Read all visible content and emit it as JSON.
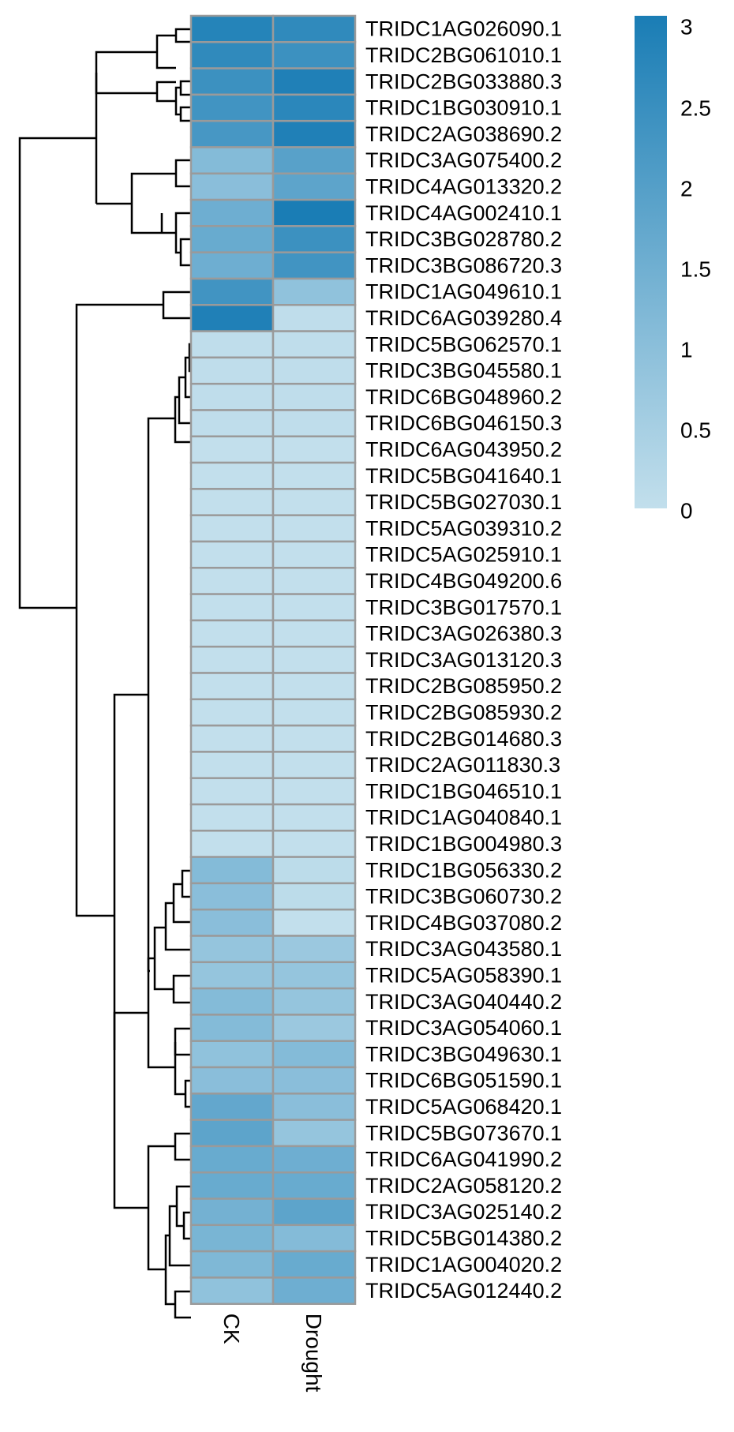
{
  "chart_data": {
    "type": "heatmap",
    "title": "",
    "columns": [
      "CK",
      "Drought"
    ],
    "rows": [
      "TRIDC1AG026090.1",
      "TRIDC2BG061010.1",
      "TRIDC2BG033880.3",
      "TRIDC1BG030910.1",
      "TRIDC2AG038690.2",
      "TRIDC3AG075400.2",
      "TRIDC4AG013320.2",
      "TRIDC4AG002410.1",
      "TRIDC3BG028780.2",
      "TRIDC3BG086720.3",
      "TRIDC1AG049610.1",
      "TRIDC6AG039280.4",
      "TRIDC5BG062570.1",
      "TRIDC3BG045580.1",
      "TRIDC6BG048960.2",
      "TRIDC6BG046150.3",
      "TRIDC6AG043950.2",
      "TRIDC5BG041640.1",
      "TRIDC5BG027030.1",
      "TRIDC5AG039310.2",
      "TRIDC5AG025910.1",
      "TRIDC4BG049200.6",
      "TRIDC3BG017570.1",
      "TRIDC3AG026380.3",
      "TRIDC3AG013120.3",
      "TRIDC2BG085950.2",
      "TRIDC2BG085930.2",
      "TRIDC2BG014680.3",
      "TRIDC2AG011830.3",
      "TRIDC1BG046510.1",
      "TRIDC1AG040840.1",
      "TRIDC1BG004980.3",
      "TRIDC1BG056330.2",
      "TRIDC3BG060730.2",
      "TRIDC4BG037080.2",
      "TRIDC3AG043580.1",
      "TRIDC5AG058390.1",
      "TRIDC3AG040440.2",
      "TRIDC3AG054060.1",
      "TRIDC3BG049630.1",
      "TRIDC6BG051590.1",
      "TRIDC5AG068420.1",
      "TRIDC5BG073670.1",
      "TRIDC6AG041990.2",
      "TRIDC2AG058120.2",
      "TRIDC3AG025140.2",
      "TRIDC5BG014380.2",
      "TRIDC1AG004020.2",
      "TRIDC5AG012440.2"
    ],
    "values": [
      [
        2.8,
        2.6
      ],
      [
        2.6,
        2.4
      ],
      [
        2.4,
        2.9
      ],
      [
        2.3,
        2.7
      ],
      [
        2.2,
        2.9
      ],
      [
        1.1,
        1.9
      ],
      [
        1.0,
        1.8
      ],
      [
        1.5,
        3.0
      ],
      [
        1.6,
        2.4
      ],
      [
        1.5,
        2.3
      ],
      [
        2.3,
        0.9
      ],
      [
        2.9,
        0.05
      ],
      [
        0.05,
        0.05
      ],
      [
        0.05,
        0.05
      ],
      [
        0.05,
        0.05
      ],
      [
        0.05,
        0.05
      ],
      [
        0.0,
        0.0
      ],
      [
        0.0,
        0.0
      ],
      [
        0.0,
        0.0
      ],
      [
        0.0,
        0.0
      ],
      [
        0.0,
        0.0
      ],
      [
        0.0,
        0.0
      ],
      [
        0.0,
        0.0
      ],
      [
        0.0,
        0.0
      ],
      [
        0.0,
        0.0
      ],
      [
        0.0,
        0.0
      ],
      [
        0.0,
        0.0
      ],
      [
        0.0,
        0.0
      ],
      [
        0.0,
        0.0
      ],
      [
        0.0,
        0.0
      ],
      [
        0.0,
        0.0
      ],
      [
        0.0,
        0.0
      ],
      [
        1.1,
        0.1
      ],
      [
        1.0,
        0.1
      ],
      [
        1.0,
        0.0
      ],
      [
        0.8,
        0.7
      ],
      [
        0.8,
        0.8
      ],
      [
        1.1,
        0.8
      ],
      [
        1.1,
        0.7
      ],
      [
        0.9,
        1.1
      ],
      [
        1.0,
        1.0
      ],
      [
        1.7,
        1.0
      ],
      [
        1.8,
        0.8
      ],
      [
        1.6,
        1.5
      ],
      [
        1.6,
        1.6
      ],
      [
        1.4,
        1.8
      ],
      [
        1.3,
        1.1
      ],
      [
        1.2,
        1.6
      ],
      [
        0.9,
        1.5
      ]
    ],
    "color_scale": {
      "min": 0,
      "max": 3,
      "low_color": "#c2dfec",
      "high_color": "#1a7db5"
    },
    "legend": {
      "placement": "top-right",
      "ticks": [
        "3",
        "2.5",
        "2",
        "1.5",
        "1",
        "0.5",
        "0"
      ],
      "tick_values": [
        3,
        2.5,
        2,
        1.5,
        1,
        0.5,
        0
      ]
    },
    "grid": false
  }
}
